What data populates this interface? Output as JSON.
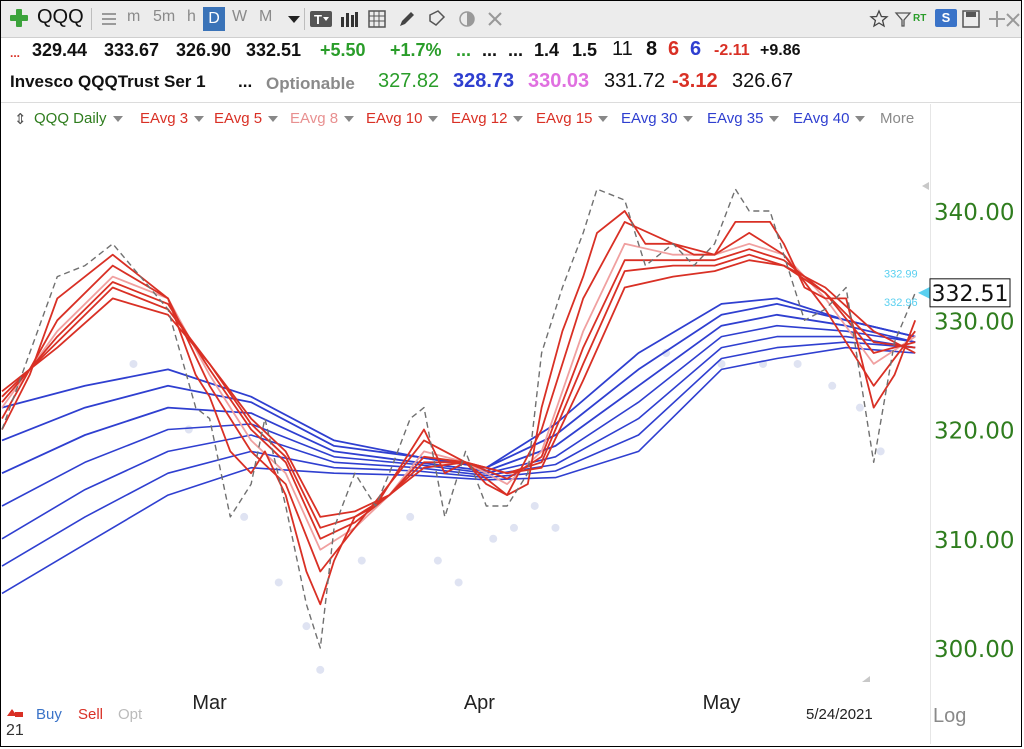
{
  "toolbar": {
    "symbol": "QQQ",
    "periods": [
      "m",
      "5m",
      "h",
      "D",
      "W",
      "M"
    ],
    "active_period": "D",
    "icons": [
      "plus-icon",
      "list-icon",
      "dropdown-icon",
      "text-tool-icon",
      "bar-chart-icon",
      "grid-icon",
      "pencil-icon",
      "tag-icon",
      "brightness-icon",
      "close-icon",
      "star-icon",
      "filter-icon",
      "rt-icon",
      "s-badge-icon",
      "save-icon",
      "move-icon",
      "close-x-icon"
    ],
    "rt_label": "RT",
    "s_label": "S"
  },
  "quote_row1": {
    "lead": "...",
    "open": "329.44",
    "high": "333.67",
    "low": "326.90",
    "close": "332.51",
    "change": "+5.50",
    "pct_change": "+1.7%",
    "dots1": "...",
    "dots2": "...",
    "dots3": "...",
    "v1": "1.4",
    "v2": "1.5",
    "v3": "11",
    "v4": "8",
    "v5": "6",
    "v6": "6",
    "v7": "-2.11",
    "v8": "+9.86"
  },
  "quote_row2": {
    "name": "Invesco QQQTrust Ser 1",
    "dots": "...",
    "optionable": "Optionable",
    "p1": "327.82",
    "p2": "328.73",
    "p3": "330.03",
    "p4": "331.72",
    "p5": "-3.12",
    "p6": "326.67"
  },
  "legend": [
    {
      "label": "QQQ Daily",
      "color": "#2f7d1e"
    },
    {
      "label": "EAvg 3",
      "color": "#d93025"
    },
    {
      "label": "EAvg 5",
      "color": "#d93025"
    },
    {
      "label": "EAvg 8",
      "color": "#e89090"
    },
    {
      "label": "EAvg 10",
      "color": "#d93025"
    },
    {
      "label": "EAvg 12",
      "color": "#d93025"
    },
    {
      "label": "EAvg 15",
      "color": "#d93025"
    },
    {
      "label": "EAvg 30",
      "color": "#2f3fd0"
    },
    {
      "label": "EAvg 35",
      "color": "#2f3fd0"
    },
    {
      "label": "EAvg 40",
      "color": "#2f3fd0"
    },
    {
      "label": "More",
      "color": "#8a8a8a"
    }
  ],
  "bottom_bar": {
    "buy": "Buy",
    "sell": "Sell",
    "opt": "Opt",
    "date": "5/24/2021",
    "log": "Log",
    "corner": "21"
  },
  "chart_data": {
    "type": "line",
    "title": "",
    "xlabel": "",
    "ylabel": "",
    "ylim": [
      297,
      345
    ],
    "x_ticks": [
      "Mar",
      "Apr",
      "May"
    ],
    "y_ticks": [
      "300.00",
      "310.00",
      "320.00",
      "330.00",
      "340.00"
    ],
    "last_price_label": "332.51",
    "side_labels": [
      "332.99",
      "332.96"
    ],
    "colors": {
      "price": "#707070",
      "red": "#d93025",
      "pink": "#f0a0a0",
      "blue": "#2f3fd0",
      "dots": "#dfe3f2"
    },
    "series": [
      {
        "name": "QQQ Daily",
        "color": "#707070",
        "style": "dashed",
        "x": [
          0,
          4,
          8,
          12,
          16,
          20,
          24,
          28,
          30,
          33,
          36,
          38,
          41,
          44,
          46,
          48,
          51,
          54,
          56,
          59,
          61,
          64,
          67,
          70,
          73,
          76,
          78,
          81,
          84,
          86,
          90,
          93,
          97,
          100,
          103,
          106,
          108,
          111,
          113,
          116,
          119,
          122,
          126,
          129,
          132
        ],
        "values": [
          320,
          327,
          334,
          335,
          337,
          334,
          331,
          322,
          321,
          312,
          315,
          321,
          313,
          304,
          300,
          311,
          316,
          313,
          316,
          321,
          322,
          312,
          318,
          313,
          313,
          316,
          327,
          333,
          338,
          342,
          341,
          335,
          337,
          335,
          337,
          342,
          340,
          340,
          336,
          330,
          331,
          333,
          317,
          328,
          332.5
        ]
      },
      {
        "name": "EAvg 3",
        "color": "#d93025",
        "x": [
          0,
          4,
          8,
          12,
          16,
          20,
          24,
          28,
          30,
          33,
          36,
          38,
          41,
          44,
          46,
          48,
          51,
          54,
          56,
          59,
          61,
          64,
          67,
          70,
          73,
          76,
          78,
          81,
          84,
          86,
          90,
          93,
          97,
          100,
          103,
          106,
          108,
          111,
          113,
          116,
          119,
          122,
          126,
          129,
          132
        ],
        "values": [
          320,
          325,
          332,
          334,
          336,
          334,
          332,
          325,
          323,
          318,
          316,
          318,
          314,
          307,
          304,
          308,
          312,
          313,
          315,
          318,
          320,
          316,
          317,
          315,
          314,
          315,
          322,
          329,
          334,
          338,
          340,
          337,
          337,
          336,
          336,
          339,
          339,
          339,
          337,
          333,
          332,
          332,
          322,
          325,
          330
        ]
      },
      {
        "name": "EAvg 5",
        "color": "#d93025",
        "x": [
          0,
          8,
          16,
          24,
          30,
          36,
          41,
          46,
          51,
          56,
          61,
          67,
          73,
          78,
          84,
          90,
          97,
          103,
          108,
          113,
          119,
          126,
          132
        ],
        "values": [
          321,
          330,
          335,
          332,
          324,
          318,
          315,
          307,
          311,
          315,
          319,
          317,
          314,
          320,
          332,
          339,
          337,
          336,
          338,
          336,
          331,
          324,
          329
        ]
      },
      {
        "name": "EAvg 8",
        "color": "#f0a0a0",
        "x": [
          0,
          8,
          16,
          24,
          30,
          36,
          41,
          46,
          51,
          56,
          61,
          67,
          73,
          78,
          84,
          90,
          97,
          103,
          108,
          113,
          119,
          126,
          132
        ],
        "values": [
          322,
          329,
          334,
          332,
          325,
          319,
          316,
          309,
          311,
          314,
          318,
          317,
          315,
          318,
          329,
          337,
          336,
          336,
          337,
          336,
          332,
          326,
          328.5
        ]
      },
      {
        "name": "EAvg 10",
        "color": "#d93025",
        "x": [
          0,
          8,
          16,
          24,
          30,
          36,
          41,
          46,
          51,
          56,
          61,
          67,
          73,
          78,
          84,
          90,
          97,
          103,
          108,
          113,
          119,
          126,
          132
        ],
        "values": [
          322.5,
          328.5,
          333.5,
          331.5,
          325.5,
          320,
          317,
          310,
          311.5,
          314,
          317.5,
          317,
          315.5,
          317.5,
          327.5,
          335.5,
          335.5,
          335.5,
          336.5,
          335.5,
          332.5,
          327,
          328
        ]
      },
      {
        "name": "EAvg 12",
        "color": "#d93025",
        "x": [
          0,
          8,
          16,
          24,
          30,
          36,
          41,
          46,
          51,
          56,
          61,
          67,
          73,
          78,
          84,
          90,
          97,
          103,
          108,
          113,
          119,
          126,
          132
        ],
        "values": [
          323,
          328,
          333,
          331,
          326,
          320.5,
          317.5,
          311,
          312,
          314,
          317,
          317,
          316,
          317,
          326,
          334.5,
          335,
          335,
          336,
          335,
          332.5,
          328,
          327.5
        ]
      },
      {
        "name": "EAvg 15",
        "color": "#d93025",
        "x": [
          0,
          8,
          16,
          24,
          30,
          36,
          41,
          46,
          51,
          56,
          61,
          67,
          73,
          78,
          84,
          90,
          97,
          103,
          108,
          113,
          119,
          126,
          132
        ],
        "values": [
          323.5,
          327.5,
          332,
          330.5,
          326,
          321,
          318,
          312,
          312.5,
          314,
          316.5,
          317,
          316,
          316.5,
          324.5,
          333,
          334,
          334.5,
          335.5,
          335,
          333,
          329,
          327
        ]
      },
      {
        "name": "EAvg 30",
        "color": "#2f3fd0",
        "x": [
          0,
          12,
          24,
          36,
          48,
          60,
          70,
          80,
          92,
          104,
          112,
          122,
          132
        ],
        "values": [
          322,
          324,
          325.5,
          323,
          319,
          317.5,
          316.5,
          320.5,
          327,
          331.5,
          332,
          330,
          328.5
        ]
      },
      {
        "name": "EAvg 35",
        "color": "#2f3fd0",
        "x": [
          0,
          12,
          24,
          36,
          48,
          60,
          70,
          80,
          92,
          104,
          112,
          122,
          132
        ],
        "values": [
          319,
          322,
          324,
          322.5,
          318.5,
          317.5,
          316.5,
          319.5,
          325.5,
          330.5,
          331.5,
          330,
          328.5
        ]
      },
      {
        "name": "EAvg 40",
        "color": "#2f3fd0",
        "x": [
          0,
          12,
          24,
          36,
          48,
          60,
          70,
          80,
          92,
          104,
          112,
          122,
          132
        ],
        "values": [
          316,
          319.5,
          322,
          321.5,
          318,
          317,
          316.2,
          318.5,
          324,
          329.5,
          330.5,
          329.5,
          328
        ]
      }
    ],
    "extra_blue_series": [
      {
        "x": [
          0,
          12,
          24,
          36,
          48,
          60,
          70,
          80,
          92,
          104,
          112,
          122,
          132
        ],
        "values": [
          313,
          317,
          320,
          320.5,
          317.5,
          316.8,
          316,
          317.5,
          322.5,
          328.5,
          329.5,
          329,
          328
        ]
      },
      {
        "x": [
          0,
          12,
          24,
          36,
          48,
          60,
          70,
          80,
          92,
          104,
          112,
          122,
          132
        ],
        "values": [
          310,
          314.5,
          318,
          319.5,
          317,
          316.5,
          315.8,
          316.8,
          321,
          327.5,
          328.5,
          328.5,
          327.5
        ]
      },
      {
        "x": [
          0,
          12,
          24,
          36,
          48,
          60,
          70,
          80,
          92,
          104,
          112,
          122,
          132
        ],
        "values": [
          307.5,
          312,
          316,
          318,
          316.5,
          316.2,
          315.6,
          316.2,
          319.5,
          326.5,
          327.5,
          328,
          327.5
        ]
      },
      {
        "x": [
          0,
          12,
          24,
          36,
          48,
          60,
          70,
          80,
          92,
          104,
          112,
          122,
          132
        ],
        "values": [
          305,
          309.5,
          314,
          316.5,
          316,
          315.8,
          315.4,
          315.6,
          318,
          325.5,
          326.5,
          327.5,
          327
        ]
      }
    ],
    "x_tick_positions": [
      30,
      69,
      104
    ],
    "dots": {
      "x": [
        19,
        27,
        35,
        40,
        44,
        46,
        52,
        59,
        63,
        66,
        71,
        74,
        77,
        80,
        96,
        104,
        110,
        115,
        120,
        124,
        127
      ],
      "values": [
        326,
        320,
        312,
        306,
        302,
        298,
        308,
        312,
        308,
        306,
        310,
        311,
        313,
        311,
        327,
        326,
        326,
        326,
        324,
        322,
        318
      ]
    },
    "x_range": [
      0,
      135
    ]
  }
}
